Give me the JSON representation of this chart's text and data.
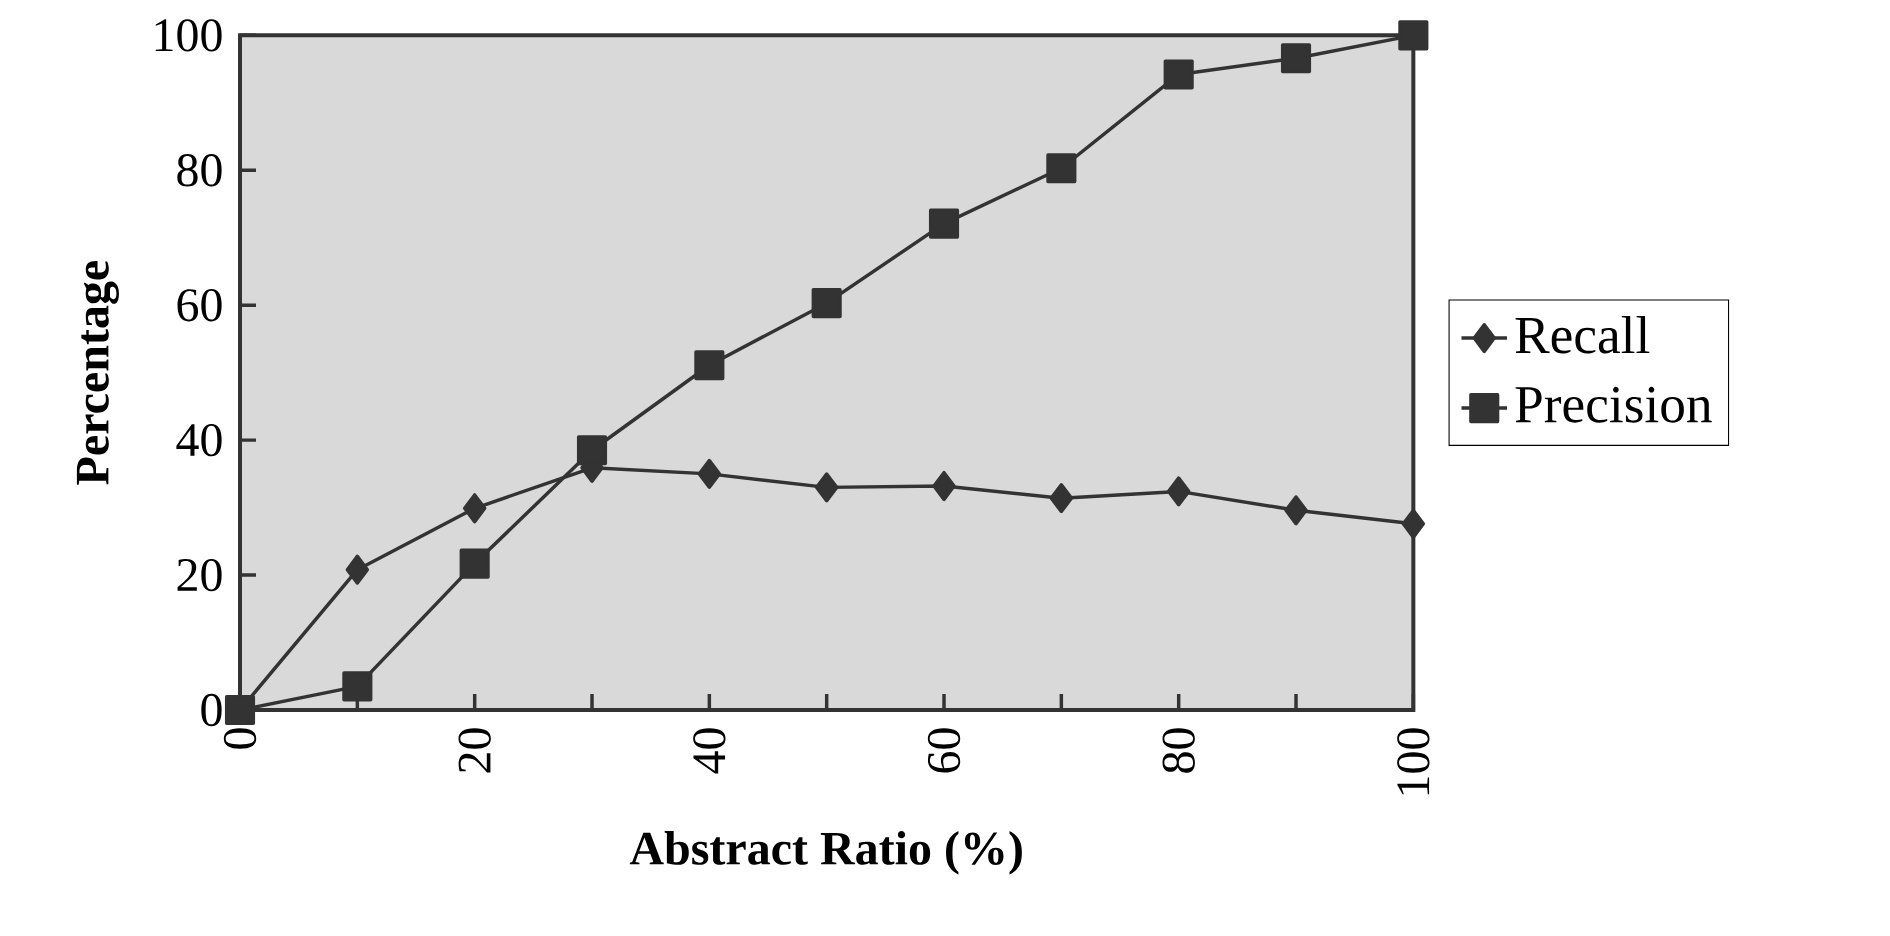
{
  "chart_data": {
    "type": "line",
    "xlabel": "Abstract Ratio (%)",
    "ylabel": "Percentage",
    "x": [
      0,
      10,
      20,
      30,
      40,
      50,
      60,
      70,
      80,
      90,
      100
    ],
    "series": [
      {
        "name": "Recall",
        "color": "#333333",
        "marker": "diamond",
        "values": [
          0,
          20.8,
          29.9,
          35.9,
          35.0,
          33.0,
          33.2,
          31.4,
          32.4,
          29.6,
          27.6
        ]
      },
      {
        "name": "Precision",
        "color": "#333333",
        "marker": "square",
        "values": [
          0,
          3.5,
          21.7,
          38.5,
          51.1,
          60.3,
          72.1,
          80.3,
          94.2,
          96.6,
          100
        ]
      }
    ],
    "xlim": [
      0,
      100
    ],
    "ylim": [
      0,
      100
    ],
    "xticks": [
      0,
      {
        "value": 10,
        "label": null
      },
      20,
      {
        "value": 30,
        "label": null
      },
      40,
      {
        "value": 50,
        "label": null
      },
      60,
      {
        "value": 70,
        "label": null
      },
      80,
      {
        "value": 90,
        "label": null
      },
      100
    ],
    "yticks": [
      0,
      20,
      40,
      60,
      80,
      100
    ],
    "grid": false,
    "legend": "right",
    "line_style": "solid"
  }
}
